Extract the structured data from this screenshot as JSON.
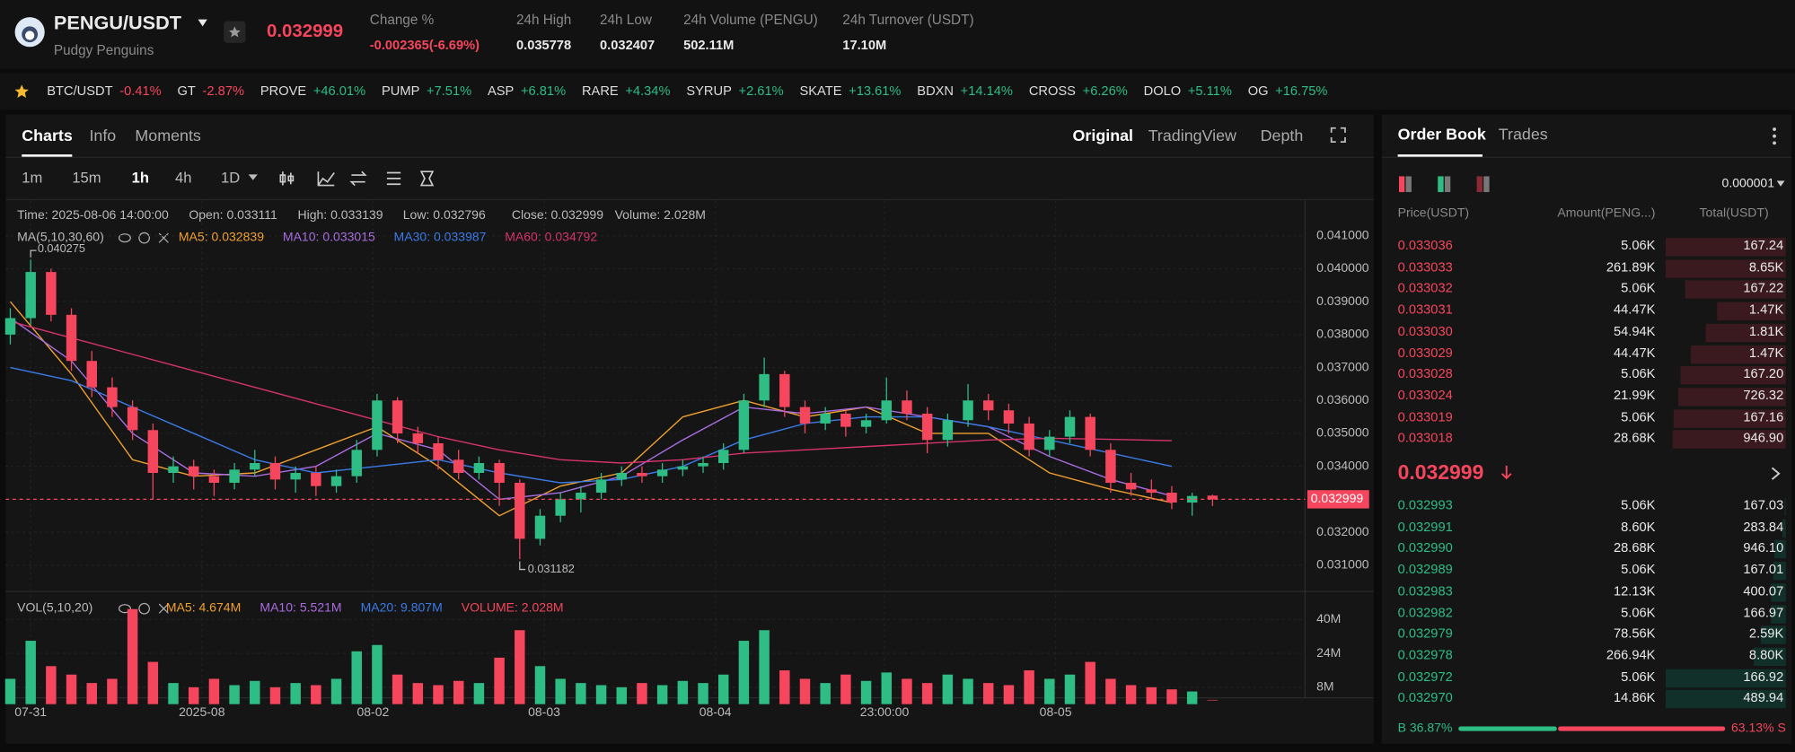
{
  "header": {
    "symbol": "PENGU/USDT",
    "name": "Pudgy Penguins",
    "price": "0.032999",
    "stats": [
      {
        "label": "Change %",
        "value": "-0.002365(-6.69%)"
      },
      {
        "label": "24h High",
        "value": "0.035778"
      },
      {
        "label": "24h Low",
        "value": "0.032407"
      },
      {
        "label": "24h Volume (PENGU)",
        "value": "502.11M"
      },
      {
        "label": "24h Turnover (USDT)",
        "value": "17.10M"
      }
    ]
  },
  "tickers": [
    {
      "name": "BTC/USDT",
      "change": "-0.41%"
    },
    {
      "name": "GT",
      "change": "-2.87%"
    },
    {
      "name": "PROVE",
      "change": "+46.01%"
    },
    {
      "name": "PUMP",
      "change": "+7.51%"
    },
    {
      "name": "ASP",
      "change": "+6.81%"
    },
    {
      "name": "RARE",
      "change": "+4.34%"
    },
    {
      "name": "SYRUP",
      "change": "+2.61%"
    },
    {
      "name": "SKATE",
      "change": "+13.61%"
    },
    {
      "name": "BDXN",
      "change": "+14.14%"
    },
    {
      "name": "CROSS",
      "change": "+6.26%"
    },
    {
      "name": "DOLO",
      "change": "+5.11%"
    },
    {
      "name": "OG",
      "change": "+16.75%"
    }
  ],
  "tabs": [
    "Charts",
    "Info",
    "Moments"
  ],
  "views": [
    "Original",
    "TradingView",
    "Depth"
  ],
  "intervals": [
    "1m",
    "15m",
    "1h",
    "4h",
    "1D"
  ],
  "info": [
    "Time: 2025-08-06 14:00:00",
    "Open: 0.033111",
    "High: 0.033139",
    "Low: 0.032796",
    "Close: 0.032999",
    "Volume: 2.028M"
  ],
  "chart_data": {
    "type": "candlestick",
    "ma_label": "MA(5,10,30,60)",
    "candles": [
      [
        0.038,
        0.0388,
        0.0377,
        0.0385
      ],
      [
        0.0385,
        0.040275,
        0.0383,
        0.0399
      ],
      [
        0.0399,
        0.04,
        0.0384,
        0.0386
      ],
      [
        0.0386,
        0.0388,
        0.0369,
        0.0372
      ],
      [
        0.0372,
        0.0375,
        0.0361,
        0.0364
      ],
      [
        0.0364,
        0.0367,
        0.0355,
        0.0358
      ],
      [
        0.0358,
        0.036,
        0.0348,
        0.0351
      ],
      [
        0.0351,
        0.0353,
        0.033,
        0.0338
      ],
      [
        0.0338,
        0.0343,
        0.0335,
        0.034
      ],
      [
        0.034,
        0.0342,
        0.0333,
        0.0337
      ],
      [
        0.0337,
        0.0339,
        0.0331,
        0.0335
      ],
      [
        0.0335,
        0.0341,
        0.0333,
        0.0339
      ],
      [
        0.0339,
        0.0345,
        0.0337,
        0.0341
      ],
      [
        0.0341,
        0.0343,
        0.0333,
        0.0336
      ],
      [
        0.0336,
        0.034,
        0.0332,
        0.0338
      ],
      [
        0.0338,
        0.034,
        0.0331,
        0.0334
      ],
      [
        0.0334,
        0.0339,
        0.0332,
        0.0337
      ],
      [
        0.0337,
        0.0348,
        0.0335,
        0.0345
      ],
      [
        0.0345,
        0.0362,
        0.0343,
        0.036
      ],
      [
        0.036,
        0.0361,
        0.0347,
        0.035
      ],
      [
        0.035,
        0.0352,
        0.0344,
        0.0347
      ],
      [
        0.0347,
        0.0349,
        0.0339,
        0.0342
      ],
      [
        0.0342,
        0.0345,
        0.0336,
        0.0338
      ],
      [
        0.0338,
        0.0343,
        0.0336,
        0.0341
      ],
      [
        0.0341,
        0.0342,
        0.0328,
        0.0335
      ],
      [
        0.0335,
        0.0336,
        0.031182,
        0.0318
      ],
      [
        0.0318,
        0.0327,
        0.0316,
        0.0325
      ],
      [
        0.0325,
        0.0332,
        0.0323,
        0.033
      ],
      [
        0.033,
        0.0334,
        0.0326,
        0.0332
      ],
      [
        0.0332,
        0.0338,
        0.033,
        0.0336
      ],
      [
        0.0336,
        0.034,
        0.0334,
        0.0338
      ],
      [
        0.0338,
        0.034,
        0.0335,
        0.0337
      ],
      [
        0.0337,
        0.0341,
        0.0335,
        0.0339
      ],
      [
        0.0339,
        0.0342,
        0.0337,
        0.034
      ],
      [
        0.034,
        0.0343,
        0.0338,
        0.0341
      ],
      [
        0.0341,
        0.0347,
        0.0339,
        0.0345
      ],
      [
        0.0345,
        0.0362,
        0.0344,
        0.036
      ],
      [
        0.036,
        0.0373,
        0.0358,
        0.0368
      ],
      [
        0.0368,
        0.0369,
        0.0355,
        0.0358
      ],
      [
        0.0358,
        0.036,
        0.035,
        0.0353
      ],
      [
        0.0353,
        0.0358,
        0.0351,
        0.0356
      ],
      [
        0.0356,
        0.0357,
        0.0349,
        0.0352
      ],
      [
        0.0352,
        0.0356,
        0.035,
        0.0354
      ],
      [
        0.0354,
        0.0367,
        0.0353,
        0.036
      ],
      [
        0.036,
        0.0363,
        0.0354,
        0.0356
      ],
      [
        0.0356,
        0.0358,
        0.0344,
        0.0348
      ],
      [
        0.0348,
        0.0356,
        0.0346,
        0.0354
      ],
      [
        0.0354,
        0.0365,
        0.0352,
        0.036
      ],
      [
        0.036,
        0.0362,
        0.0354,
        0.0357
      ],
      [
        0.0357,
        0.0359,
        0.035,
        0.0353
      ],
      [
        0.0353,
        0.0355,
        0.0343,
        0.0345
      ],
      [
        0.0345,
        0.0351,
        0.0343,
        0.0349
      ],
      [
        0.0349,
        0.0357,
        0.0347,
        0.0355
      ],
      [
        0.0355,
        0.0356,
        0.0343,
        0.0345
      ],
      [
        0.0345,
        0.0347,
        0.0332,
        0.0335
      ],
      [
        0.0335,
        0.0338,
        0.0331,
        0.0333
      ],
      [
        0.0333,
        0.0336,
        0.033,
        0.0332
      ],
      [
        0.0332,
        0.0334,
        0.0327,
        0.0329
      ],
      [
        0.0329,
        0.0332,
        0.0325,
        0.0331
      ],
      [
        0.033111,
        0.033139,
        0.032796,
        0.032999
      ]
    ],
    "up_color": "#2ebd85",
    "down_color": "#f6465d",
    "ma_x": [
      0,
      3,
      6,
      9,
      12,
      15,
      18,
      21,
      24,
      27,
      30,
      33,
      36,
      39,
      42,
      45,
      48,
      51,
      54,
      57
    ],
    "series": [
      {
        "name": "MA5: 0.032839",
        "color": "#f0a030",
        "values": [
          0.039,
          0.0368,
          0.0342,
          0.0337,
          0.0338,
          0.0345,
          0.0352,
          0.034,
          0.0325,
          0.0334,
          0.0338,
          0.0355,
          0.036,
          0.0355,
          0.0358,
          0.035,
          0.035,
          0.0338,
          0.0333,
          0.0329
        ]
      },
      {
        "name": "MA10: 0.033015",
        "color": "#a86ce0",
        "values": [
          0.0385,
          0.0372,
          0.035,
          0.0338,
          0.0337,
          0.034,
          0.035,
          0.0345,
          0.033,
          0.0332,
          0.0337,
          0.0348,
          0.0358,
          0.0356,
          0.0358,
          0.0355,
          0.0352,
          0.0343,
          0.0336,
          0.0331
        ]
      },
      {
        "name": "MA30: 0.033987",
        "color": "#3a7be8",
        "values": [
          0.037,
          0.0366,
          0.0358,
          0.035,
          0.0342,
          0.0338,
          0.034,
          0.0342,
          0.0338,
          0.0335,
          0.0336,
          0.034,
          0.0348,
          0.0353,
          0.0355,
          0.0355,
          0.0352,
          0.0348,
          0.0344,
          0.034
        ]
      },
      {
        "name": "MA60: 0.034792",
        "color": "#d6336c",
        "values": [
          0.0384,
          0.0379,
          0.0374,
          0.0369,
          0.0364,
          0.0359,
          0.0354,
          0.0349,
          0.0345,
          0.0342,
          0.0341,
          0.0342,
          0.0344,
          0.0345,
          0.0346,
          0.0347,
          0.0348,
          0.03485,
          0.03482,
          0.03478
        ]
      }
    ],
    "ylim": [
      0.03027,
      0.04208
    ],
    "yticks": [
      {
        "value": 0.031,
        "label": "0.031000"
      },
      {
        "value": 0.032,
        "label": "0.032000"
      },
      {
        "value": 0.033,
        "label": "0.033000"
      },
      {
        "value": 0.034,
        "label": "0.034000"
      },
      {
        "value": 0.035,
        "label": "0.035000"
      },
      {
        "value": 0.036,
        "label": "0.036000"
      },
      {
        "value": 0.037,
        "label": "0.037000"
      },
      {
        "value": 0.038,
        "label": "0.038000"
      },
      {
        "value": 0.039,
        "label": "0.039000"
      },
      {
        "value": 0.04,
        "label": "0.040000"
      },
      {
        "value": 0.041,
        "label": "0.041000"
      }
    ],
    "xticks": [
      {
        "value": 1,
        "label": "07-31"
      },
      {
        "value": 9.4,
        "label": "2025-08"
      },
      {
        "value": 17.8,
        "label": "08-02"
      },
      {
        "value": 26.2,
        "label": "08-03"
      },
      {
        "value": 34.6,
        "label": "08-04"
      },
      {
        "value": 42.9,
        "label": "23:00:00"
      },
      {
        "value": 51.3,
        "label": "08-05"
      }
    ],
    "volume": {
      "label": "VOL(5,10,20)",
      "legend": [
        {
          "name": "MA5: 4.674M",
          "color": "#f0a030"
        },
        {
          "name": "MA10: 5.521M",
          "color": "#a86ce0"
        },
        {
          "name": "MA20: 9.807M",
          "color": "#3a7be8"
        },
        {
          "name": "VOLUME: 2.028M",
          "color": "#f6465d"
        }
      ],
      "values": [
        12,
        30,
        18,
        14,
        10,
        12,
        45,
        20,
        10,
        8,
        12,
        9,
        11,
        8,
        10,
        9,
        12,
        25,
        28,
        14,
        10,
        9,
        11,
        10,
        22,
        35,
        18,
        12,
        10,
        9,
        8,
        10,
        9,
        11,
        10,
        14,
        30,
        35,
        16,
        12,
        10,
        14,
        11,
        15,
        12,
        10,
        14,
        12,
        10,
        9,
        16,
        12,
        14,
        20,
        12,
        9,
        8,
        7,
        6,
        2.028
      ],
      "ylim": [
        0,
        49
      ],
      "yticks": [
        {
          "value": 8,
          "label": "8M"
        },
        {
          "value": 24,
          "label": "24M"
        },
        {
          "value": 40,
          "label": "40M"
        }
      ]
    }
  },
  "order_book": {
    "tabs": [
      "Order Book",
      "Trades"
    ],
    "precision": "0.000001",
    "columns": [
      "Price(USDT)",
      "Amount(PENG...)",
      "Total(USDT)"
    ],
    "asks": [
      {
        "price": "0.033036",
        "amount": "5.06K",
        "total": "167.24",
        "depth": 75
      },
      {
        "price": "0.033033",
        "amount": "261.89K",
        "total": "8.65K",
        "depth": 75
      },
      {
        "price": "0.033032",
        "amount": "5.06K",
        "total": "167.22",
        "depth": 63
      },
      {
        "price": "0.033031",
        "amount": "44.47K",
        "total": "1.47K",
        "depth": 43
      },
      {
        "price": "0.033030",
        "amount": "54.94K",
        "total": "1.81K",
        "depth": 50
      },
      {
        "price": "0.033029",
        "amount": "44.47K",
        "total": "1.47K",
        "depth": 59
      },
      {
        "price": "0.033028",
        "amount": "5.06K",
        "total": "167.20",
        "depth": 66
      },
      {
        "price": "0.033024",
        "amount": "21.99K",
        "total": "726.32",
        "depth": 67
      },
      {
        "price": "0.033019",
        "amount": "5.06K",
        "total": "167.16",
        "depth": 70
      },
      {
        "price": "0.033018",
        "amount": "28.68K",
        "total": "946.90",
        "depth": 71
      }
    ],
    "last_price": "0.032999",
    "bids": [
      {
        "price": "0.032993",
        "amount": "5.06K",
        "total": "167.03",
        "depth": 1
      },
      {
        "price": "0.032991",
        "amount": "8.60K",
        "total": "283.84",
        "depth": 2
      },
      {
        "price": "0.032990",
        "amount": "28.68K",
        "total": "946.10",
        "depth": 7
      },
      {
        "price": "0.032989",
        "amount": "5.06K",
        "total": "167.01",
        "depth": 8
      },
      {
        "price": "0.032983",
        "amount": "12.13K",
        "total": "400.07",
        "depth": 9
      },
      {
        "price": "0.032982",
        "amount": "5.06K",
        "total": "166.97",
        "depth": 9
      },
      {
        "price": "0.032979",
        "amount": "78.56K",
        "total": "2.59K",
        "depth": 16
      },
      {
        "price": "0.032978",
        "amount": "266.94K",
        "total": "8.80K",
        "depth": 20
      },
      {
        "price": "0.032972",
        "amount": "5.06K",
        "total": "166.92",
        "depth": 75
      },
      {
        "price": "0.032970",
        "amount": "14.86K",
        "total": "489.94",
        "depth": 75
      }
    ],
    "ratio": {
      "values": [
        36.87,
        63.13
      ],
      "value_labels": [
        "B 36.87%",
        "63.13% S"
      ]
    }
  }
}
